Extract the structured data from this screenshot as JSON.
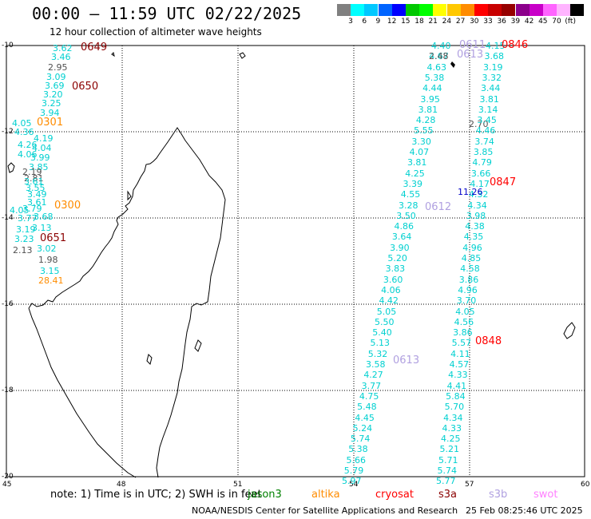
{
  "header": {
    "title": "00:00 – 11:59 UTC 02/22/2025",
    "subtitle": "12 hour collection of altimeter wave heights"
  },
  "colorbar": {
    "colors": [
      "#808080",
      "#00ffff",
      "#00c8ff",
      "#0064ff",
      "#0000ff",
      "#00c800",
      "#00ff00",
      "#ffff00",
      "#ffc800",
      "#ff8c00",
      "#ff0000",
      "#c80000",
      "#960000",
      "#8c008c",
      "#c800c8",
      "#ff64ff",
      "#ffb4ff",
      "#000000"
    ],
    "labels": [
      "3",
      "6",
      "9",
      "12",
      "15",
      "18",
      "21",
      "24",
      "27",
      "30",
      "33",
      "36",
      "39",
      "42",
      "45",
      "70",
      "(ft)"
    ]
  },
  "axes": {
    "x_ticks": [
      "45",
      "48",
      "51",
      "54",
      "57",
      "60"
    ],
    "y_ticks": [
      "-10",
      "-12",
      "-14",
      "-16",
      "-18",
      "-20"
    ]
  },
  "passes": [
    {
      "text": "0649",
      "color": "#8b0000"
    },
    {
      "text": "0650",
      "color": "#8b0000"
    },
    {
      "text": "0301",
      "color": "#ff8c00"
    },
    {
      "text": "0300",
      "color": "#ff8c00"
    },
    {
      "text": "0651",
      "color": "#8b0000"
    },
    {
      "text": "0611",
      "color": "#b0a0e0"
    },
    {
      "text": "0612",
      "color": "#b0a0e0"
    },
    {
      "text": "0613",
      "color": "#b0a0e0"
    },
    {
      "text": "0613",
      "color": "#b0a0e0"
    },
    {
      "text": "0846",
      "color": "#ff0000"
    },
    {
      "text": "0847",
      "color": "#ff0000"
    },
    {
      "text": "0848",
      "color": "#ff0000"
    }
  ],
  "wave_columns": [
    {
      "color": "#00d0d0",
      "values": [
        "3.62",
        "3.46"
      ]
    },
    {
      "color": "#505050",
      "values": [
        "2.95"
      ]
    },
    {
      "color": "#00d0d0",
      "values": [
        "3.09",
        "3.69",
        "3.20",
        "3.25",
        "3.94"
      ]
    },
    {
      "color": "#00d0d0",
      "values": [
        "4.05",
        "4.36",
        "4.19",
        "4.26",
        "4.04",
        "4.06",
        "3.99",
        "3.85"
      ]
    },
    {
      "color": "#505050",
      "values": [
        "2.19",
        "2.81"
      ]
    },
    {
      "color": "#00d0d0",
      "values": [
        "3.61",
        "3.55",
        "3.49",
        "3.61",
        "3.79",
        "4.05",
        "3.68",
        "3.77",
        "3.13",
        "3.19",
        "3.23",
        "3.02"
      ]
    },
    {
      "color": "#505050",
      "values": [
        "2.13",
        "1.98"
      ]
    },
    {
      "color": "#00d0d0",
      "values": [
        "3.15"
      ]
    },
    {
      "color": "#ff8c00",
      "values": [
        "28.41"
      ]
    },
    {
      "color": "#00d0d0",
      "values": [
        "4.40",
        "4.67",
        "4.63",
        "5.38",
        "4.44",
        "3.95",
        "3.81",
        "4.28",
        "5.55",
        "3.30",
        "4.07",
        "3.81",
        "4.25",
        "3.39",
        "4.55",
        "3.28",
        "3.50",
        "4.86",
        "3.64",
        "3.90",
        "5.20",
        "3.83",
        "3.60",
        "4.06",
        "4.42",
        "5.05",
        "5.50",
        "5.40",
        "5.13",
        "5.32",
        "3.58",
        "4.27",
        "3.77",
        "4.75",
        "5.48",
        "4.45",
        "5.24",
        "5.74",
        "5.38",
        "5.66",
        "5.79",
        "5.97"
      ]
    },
    {
      "color": "#505050",
      "values": [
        "2.48",
        "2.70"
      ]
    },
    {
      "color": "#00d0d0",
      "values": [
        "4.15",
        "3.68",
        "3.19",
        "3.32",
        "3.44",
        "3.81",
        "3.14",
        "3.45",
        "4.46",
        "3.74",
        "3.85",
        "4.79",
        "3.66",
        "4.17",
        "4.32",
        "4.34",
        "3.98",
        "4.38",
        "4.35",
        "4.96",
        "4.85",
        "4.58",
        "3.86",
        "4.96",
        "3.70",
        "4.05",
        "4.56",
        "3.86",
        "5.57",
        "4.11",
        "4.57",
        "4.33",
        "4.41",
        "5.84",
        "5.70",
        "4.34",
        "4.33",
        "4.25",
        "5.21",
        "5.71",
        "5.74",
        "5.77"
      ]
    },
    {
      "color": "#0000c8",
      "values": [
        "11.26"
      ]
    }
  ],
  "legend": {
    "note": "note:  1) Time is in UTC; 2) SWH is in feet",
    "items": [
      {
        "text": "jason3",
        "color": "#008000"
      },
      {
        "text": "altika",
        "color": "#ff8c00"
      },
      {
        "text": "cryosat",
        "color": "#ff0000"
      },
      {
        "text": "s3a",
        "color": "#8b0000"
      },
      {
        "text": "s3b",
        "color": "#b0a0e0"
      },
      {
        "text": "swot",
        "color": "#ff80ff"
      }
    ]
  },
  "footer": {
    "credit": "NOAA/NESDIS Center for Satellite Applications and Research",
    "timestamp": "25 Feb 08:25:46 UTC 2025"
  }
}
